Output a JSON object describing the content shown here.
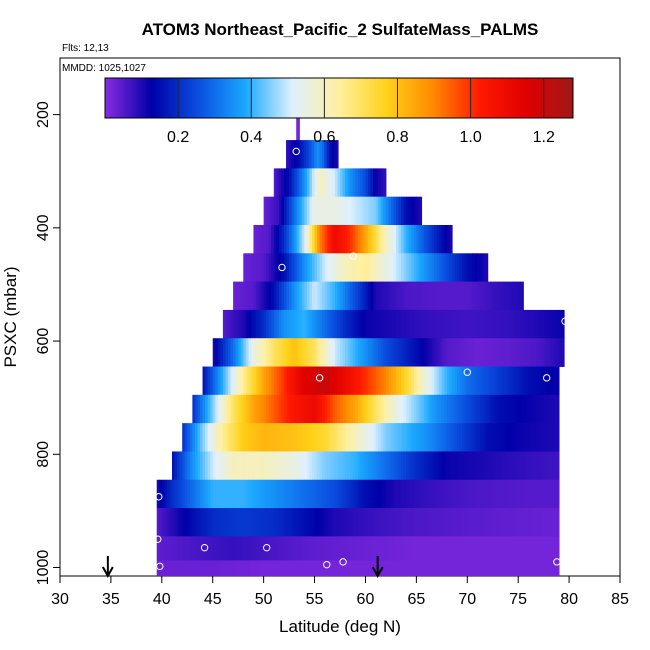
{
  "header": {
    "title": "ATOM3 Northeast_Pacific_2 SulfateMass_PALMS",
    "flights": "Flts: 12,13",
    "dates": "MMDD: 1025,1027"
  },
  "chart_data": {
    "type": "heatmap",
    "title": "ATOM3 Northeast_Pacific_2 SulfateMass_PALMS",
    "xlabel": "Latitude (deg N)",
    "ylabel": "PSXC (mbar)",
    "xlim": [
      30,
      85
    ],
    "ylim": [
      1015,
      100
    ],
    "y_reversed": true,
    "x_ticks": [
      "30",
      "35",
      "40",
      "45",
      "50",
      "55",
      "60",
      "65",
      "70",
      "75",
      "80",
      "85"
    ],
    "y_ticks": [
      "200",
      "400",
      "600",
      "800",
      "1000"
    ],
    "colorbar": {
      "range": [
        0,
        1.28
      ],
      "ticks": [
        "0.2",
        "0.4",
        "0.6",
        "0.8",
        "1.0",
        "1.2"
      ],
      "stops": [
        "#8a2be2",
        "#0000a8",
        "#0a4fe0",
        "#1aa8ff",
        "#dff0ff",
        "#fff0a0",
        "#ffd21a",
        "#ff8a00",
        "#ff1a00",
        "#e00000",
        "#a01818"
      ]
    },
    "levels": [
      {
        "p": 220,
        "lat_start": 53.2,
        "lat_end": 53.5,
        "profile": [
          [
            53.2,
            0.02
          ],
          [
            53.5,
            0.02
          ]
        ]
      },
      {
        "p": 270,
        "lat_start": 52.2,
        "lat_end": 57.3,
        "profile": [
          [
            52.2,
            0.08
          ],
          [
            53.5,
            0.15
          ],
          [
            54.5,
            0.25
          ],
          [
            55.3,
            0.35
          ],
          [
            55.8,
            0.3
          ],
          [
            56.5,
            0.15
          ],
          [
            57.3,
            0.1
          ]
        ]
      },
      {
        "p": 320,
        "lat_start": 51.0,
        "lat_end": 62.0,
        "profile": [
          [
            51,
            0.05
          ],
          [
            52.5,
            0.15
          ],
          [
            54,
            0.35
          ],
          [
            55.5,
            0.6
          ],
          [
            57,
            0.5
          ],
          [
            58.5,
            0.35
          ],
          [
            60,
            0.25
          ],
          [
            61,
            0.12
          ],
          [
            62,
            0.08
          ]
        ]
      },
      {
        "p": 370,
        "lat_start": 50.0,
        "lat_end": 65.5,
        "profile": [
          [
            50,
            0.03
          ],
          [
            51.5,
            0.08
          ],
          [
            53,
            0.3
          ],
          [
            55,
            0.55
          ],
          [
            57,
            0.55
          ],
          [
            59,
            0.5
          ],
          [
            61,
            0.45
          ],
          [
            62.5,
            0.3
          ],
          [
            64,
            0.15
          ],
          [
            65.5,
            0.1
          ]
        ]
      },
      {
        "p": 420,
        "lat_start": 49.0,
        "lat_end": 68.5,
        "profile": [
          [
            49,
            0.03
          ],
          [
            50.5,
            0.05
          ],
          [
            52,
            0.2
          ],
          [
            54,
            0.5
          ],
          [
            55.5,
            0.9
          ],
          [
            57,
            1.1
          ],
          [
            58.5,
            1.0
          ],
          [
            60,
            0.85
          ],
          [
            62,
            0.6
          ],
          [
            64,
            0.4
          ],
          [
            66,
            0.25
          ],
          [
            67.5,
            0.15
          ],
          [
            68.5,
            0.1
          ]
        ]
      },
      {
        "p": 470,
        "lat_start": 48.0,
        "lat_end": 72.0,
        "profile": [
          [
            48,
            0.03
          ],
          [
            50,
            0.05
          ],
          [
            52,
            0.15
          ],
          [
            54,
            0.35
          ],
          [
            56,
            0.5
          ],
          [
            58,
            0.6
          ],
          [
            60,
            0.65
          ],
          [
            63,
            0.5
          ],
          [
            66,
            0.35
          ],
          [
            68,
            0.25
          ],
          [
            70,
            0.15
          ],
          [
            72,
            0.1
          ]
        ]
      },
      {
        "p": 520,
        "lat_start": 47.0,
        "lat_end": 75.5,
        "profile": [
          [
            47,
            0.03
          ],
          [
            49,
            0.05
          ],
          [
            51,
            0.15
          ],
          [
            53,
            0.35
          ],
          [
            55,
            0.5
          ],
          [
            57,
            0.4
          ],
          [
            59,
            0.25
          ],
          [
            61,
            0.1
          ],
          [
            64,
            0.06
          ],
          [
            67,
            0.05
          ],
          [
            70,
            0.05
          ],
          [
            73,
            0.08
          ],
          [
            75.5,
            0.1
          ]
        ]
      },
      {
        "p": 570,
        "lat_start": 46.0,
        "lat_end": 79.5,
        "profile": [
          [
            46,
            0.05
          ],
          [
            48,
            0.1
          ],
          [
            50,
            0.2
          ],
          [
            52,
            0.35
          ],
          [
            54,
            0.4
          ],
          [
            56,
            0.3
          ],
          [
            58,
            0.2
          ],
          [
            60,
            0.12
          ],
          [
            63,
            0.1
          ],
          [
            66,
            0.08
          ],
          [
            70,
            0.07
          ],
          [
            74,
            0.08
          ],
          [
            77,
            0.1
          ],
          [
            79.5,
            0.12
          ]
        ]
      },
      {
        "p": 620,
        "lat_start": 45.0,
        "lat_end": 79.5,
        "profile": [
          [
            45,
            0.1
          ],
          [
            47,
            0.3
          ],
          [
            49,
            0.55
          ],
          [
            51,
            0.7
          ],
          [
            53,
            0.8
          ],
          [
            55,
            0.7
          ],
          [
            57,
            0.5
          ],
          [
            59,
            0.4
          ],
          [
            62,
            0.25
          ],
          [
            65,
            0.15
          ],
          [
            68,
            0.05
          ],
          [
            71,
            0.03
          ],
          [
            74,
            0.04
          ],
          [
            77,
            0.06
          ],
          [
            79.5,
            0.1
          ]
        ]
      },
      {
        "p": 670,
        "lat_start": 44.0,
        "lat_end": 79.0,
        "profile": [
          [
            44,
            0.15
          ],
          [
            46,
            0.4
          ],
          [
            48,
            0.65
          ],
          [
            50,
            0.85
          ],
          [
            52,
            1.0
          ],
          [
            54,
            1.15
          ],
          [
            56,
            1.2
          ],
          [
            58,
            1.1
          ],
          [
            60,
            1.0
          ],
          [
            62,
            0.9
          ],
          [
            64,
            0.75
          ],
          [
            66,
            0.55
          ],
          [
            68,
            0.4
          ],
          [
            70,
            0.3
          ],
          [
            72,
            0.25
          ],
          [
            74,
            0.2
          ],
          [
            76,
            0.15
          ],
          [
            79,
            0.12
          ]
        ]
      },
      {
        "p": 720,
        "lat_start": 43.0,
        "lat_end": 79.0,
        "profile": [
          [
            43,
            0.2
          ],
          [
            45,
            0.45
          ],
          [
            47,
            0.7
          ],
          [
            49,
            0.85
          ],
          [
            51,
            0.95
          ],
          [
            53,
            1.05
          ],
          [
            55,
            1.1
          ],
          [
            57,
            0.95
          ],
          [
            59,
            0.85
          ],
          [
            61,
            0.7
          ],
          [
            63,
            0.55
          ],
          [
            65,
            0.45
          ],
          [
            67,
            0.35
          ],
          [
            70,
            0.25
          ],
          [
            73,
            0.15
          ],
          [
            76,
            0.12
          ],
          [
            79,
            0.1
          ]
        ]
      },
      {
        "p": 770,
        "lat_start": 42.0,
        "lat_end": 79.0,
        "profile": [
          [
            42,
            0.2
          ],
          [
            44,
            0.45
          ],
          [
            46,
            0.65
          ],
          [
            48,
            0.78
          ],
          [
            50,
            0.82
          ],
          [
            53,
            0.8
          ],
          [
            56,
            0.75
          ],
          [
            58,
            0.65
          ],
          [
            60,
            0.55
          ],
          [
            62,
            0.45
          ],
          [
            64,
            0.4
          ],
          [
            66,
            0.35
          ],
          [
            69,
            0.25
          ],
          [
            72,
            0.15
          ],
          [
            75,
            0.12
          ],
          [
            79,
            0.1
          ]
        ]
      },
      {
        "p": 820,
        "lat_start": 41.0,
        "lat_end": 79.0,
        "profile": [
          [
            41,
            0.15
          ],
          [
            43,
            0.35
          ],
          [
            45,
            0.5
          ],
          [
            47,
            0.6
          ],
          [
            50,
            0.6
          ],
          [
            53,
            0.55
          ],
          [
            56,
            0.45
          ],
          [
            59,
            0.4
          ],
          [
            62,
            0.3
          ],
          [
            65,
            0.2
          ],
          [
            68,
            0.12
          ],
          [
            72,
            0.1
          ],
          [
            76,
            0.08
          ],
          [
            79,
            0.07
          ]
        ]
      },
      {
        "p": 870,
        "lat_start": 39.5,
        "lat_end": 79.0,
        "profile": [
          [
            39.5,
            0.1
          ],
          [
            41,
            0.2
          ],
          [
            43,
            0.3
          ],
          [
            45,
            0.4
          ],
          [
            48,
            0.4
          ],
          [
            51,
            0.35
          ],
          [
            54,
            0.3
          ],
          [
            57,
            0.25
          ],
          [
            60,
            0.15
          ],
          [
            63,
            0.1
          ],
          [
            66,
            0.08
          ],
          [
            70,
            0.06
          ],
          [
            75,
            0.05
          ],
          [
            79,
            0.05
          ]
        ]
      },
      {
        "p": 920,
        "lat_start": 39.5,
        "lat_end": 79.0,
        "profile": [
          [
            39.5,
            0.05
          ],
          [
            42,
            0.12
          ],
          [
            45,
            0.2
          ],
          [
            48,
            0.22
          ],
          [
            51,
            0.2
          ],
          [
            54,
            0.15
          ],
          [
            57,
            0.1
          ],
          [
            60,
            0.08
          ],
          [
            64,
            0.06
          ],
          [
            68,
            0.05
          ],
          [
            73,
            0.04
          ],
          [
            79,
            0.03
          ]
        ]
      },
      {
        "p": 970,
        "lat_start": 39.5,
        "lat_end": 79.0,
        "profile": [
          [
            39.5,
            0.04
          ],
          [
            43,
            0.06
          ],
          [
            47,
            0.08
          ],
          [
            51,
            0.06
          ],
          [
            55,
            0.04
          ],
          [
            60,
            0.03
          ],
          [
            65,
            0.02
          ],
          [
            70,
            0.02
          ],
          [
            75,
            0.02
          ],
          [
            79,
            0.02
          ]
        ]
      },
      {
        "p": 1005,
        "lat_start": 39.5,
        "lat_end": 79.0,
        "profile": [
          [
            39.5,
            0.03
          ],
          [
            45,
            0.03
          ],
          [
            50,
            0.02
          ],
          [
            55,
            0.02
          ],
          [
            60,
            0.02
          ],
          [
            70,
            0.02
          ],
          [
            79,
            0.02
          ]
        ]
      }
    ],
    "markers": [
      {
        "lat": 53.2,
        "p": 265
      },
      {
        "lat": 51.8,
        "p": 470
      },
      {
        "lat": 58.8,
        "p": 450
      },
      {
        "lat": 55.5,
        "p": 665
      },
      {
        "lat": 70.0,
        "p": 655
      },
      {
        "lat": 77.8,
        "p": 665
      },
      {
        "lat": 79.6,
        "p": 565
      },
      {
        "lat": 39.7,
        "p": 875
      },
      {
        "lat": 39.6,
        "p": 950
      },
      {
        "lat": 44.2,
        "p": 965
      },
      {
        "lat": 50.3,
        "p": 965
      },
      {
        "lat": 56.2,
        "p": 995
      },
      {
        "lat": 57.8,
        "p": 990
      },
      {
        "lat": 39.8,
        "p": 998
      },
      {
        "lat": 78.8,
        "p": 990
      }
    ],
    "arrows": [
      34.7,
      61.2
    ]
  }
}
